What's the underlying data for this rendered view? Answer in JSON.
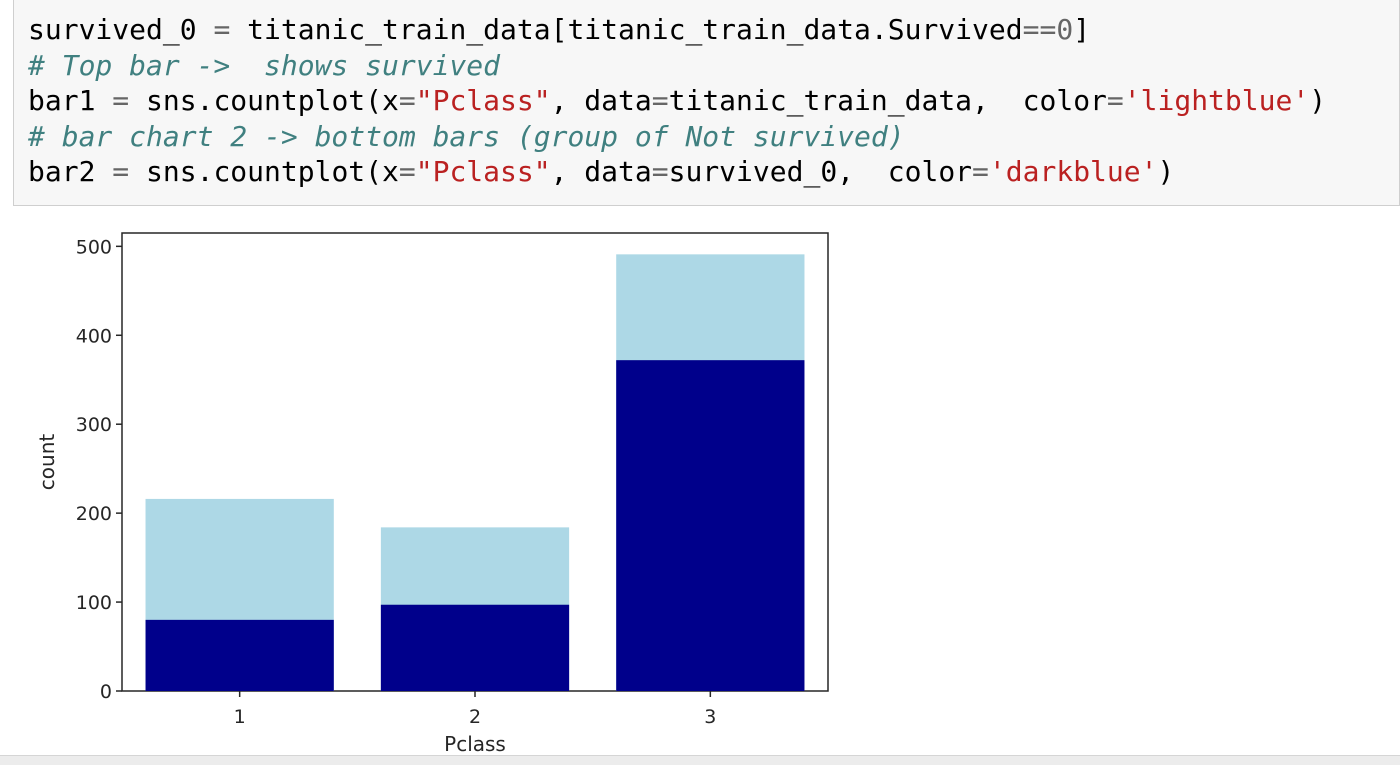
{
  "code_cell": {
    "lines": [
      {
        "kind": "code",
        "parts": [
          {
            "t": "survived_0 "
          },
          {
            "t": "=",
            "c": "eq"
          },
          {
            "t": " titanic_train_data[titanic_train_data.Survived"
          },
          {
            "t": "==",
            "c": "eq"
          },
          {
            "t": "0",
            "c": "num"
          },
          {
            "t": "]"
          }
        ]
      },
      {
        "kind": "comment",
        "parts": [
          {
            "t": "# Top bar ->  shows survived"
          }
        ]
      },
      {
        "kind": "code",
        "parts": [
          {
            "t": "bar1 "
          },
          {
            "t": "=",
            "c": "eq"
          },
          {
            "t": " sns.countplot(x"
          },
          {
            "t": "=",
            "c": "eq"
          },
          {
            "t": "\"Pclass\"",
            "c": "str"
          },
          {
            "t": ", data"
          },
          {
            "t": "=",
            "c": "eq"
          },
          {
            "t": "titanic_train_data,  color"
          },
          {
            "t": "=",
            "c": "eq"
          },
          {
            "t": "'lightblue'",
            "c": "str"
          },
          {
            "t": ")"
          }
        ]
      },
      {
        "kind": "comment",
        "parts": [
          {
            "t": "# bar chart 2 -> bottom bars (group of Not survived)"
          }
        ]
      },
      {
        "kind": "code",
        "parts": [
          {
            "t": "bar2 "
          },
          {
            "t": "=",
            "c": "eq"
          },
          {
            "t": " sns.countplot(x"
          },
          {
            "t": "=",
            "c": "eq"
          },
          {
            "t": "\"Pclass\"",
            "c": "str"
          },
          {
            "t": ", data"
          },
          {
            "t": "=",
            "c": "eq"
          },
          {
            "t": "survived_0,  color"
          },
          {
            "t": "=",
            "c": "eq"
          },
          {
            "t": "'darkblue'",
            "c": "str"
          },
          {
            "t": ")"
          }
        ]
      }
    ]
  },
  "chart_data": {
    "type": "bar",
    "categories": [
      "1",
      "2",
      "3"
    ],
    "series": [
      {
        "values": [
          216,
          184,
          491
        ],
        "color": "#add8e6"
      },
      {
        "values": [
          80,
          97,
          372
        ],
        "color": "#00008b"
      }
    ],
    "overlaid": true,
    "xlabel": "Pclass",
    "ylabel": "count",
    "ylim": [
      0,
      515
    ],
    "yticks": [
      "0",
      "100",
      "200",
      "300",
      "400",
      "500"
    ],
    "grid": false,
    "legend": "none"
  }
}
